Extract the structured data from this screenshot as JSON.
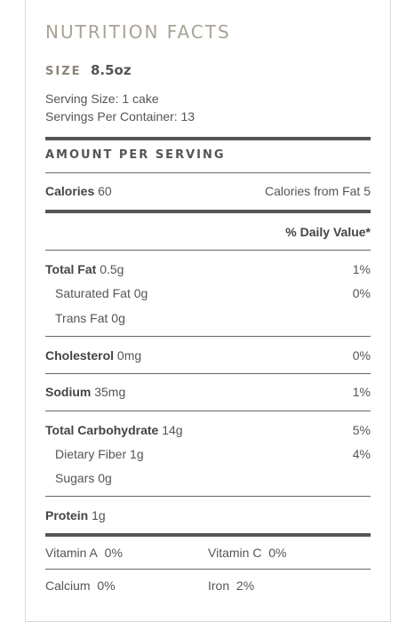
{
  "header": {
    "title": "NUTRITION FACTS",
    "size_label": "SIZE",
    "size_value": "8.5oz",
    "serving_size": "Serving Size: 1 cake",
    "servings_per_container": "Servings Per Container: 13"
  },
  "amount_per_serving": "AMOUNT PER SERVING",
  "calories": {
    "label": "Calories",
    "value": "60",
    "from_fat": "Calories from Fat 5"
  },
  "daily_value_header": "% Daily Value*",
  "nutrients": {
    "total_fat": {
      "label": "Total Fat",
      "amount": "0.5g",
      "dv": "1%"
    },
    "saturated_fat": {
      "label": "Saturated Fat",
      "amount": "0g",
      "dv": "0%"
    },
    "trans_fat": {
      "label": "Trans Fat",
      "amount": "0g"
    },
    "cholesterol": {
      "label": "Cholesterol",
      "amount": "0mg",
      "dv": "0%"
    },
    "sodium": {
      "label": "Sodium",
      "amount": "35mg",
      "dv": "1%"
    },
    "total_carbohydrate": {
      "label": "Total Carbohydrate",
      "amount": "14g",
      "dv": "5%"
    },
    "dietary_fiber": {
      "label": "Dietary Fiber",
      "amount": "1g",
      "dv": "4%"
    },
    "sugars": {
      "label": "Sugars",
      "amount": "0g"
    },
    "protein": {
      "label": "Protein",
      "amount": "1g"
    }
  },
  "vitamins": {
    "vitamin_a": {
      "label": "Vitamin A",
      "value": "0%"
    },
    "vitamin_c": {
      "label": "Vitamin C",
      "value": "0%"
    },
    "calcium": {
      "label": "Calcium",
      "value": "0%"
    },
    "iron": {
      "label": "Iron",
      "value": "2%"
    }
  },
  "colors": {
    "title": "#a8a396",
    "text": "#555555",
    "rule": "#555555",
    "border": "#d9d9d9"
  }
}
